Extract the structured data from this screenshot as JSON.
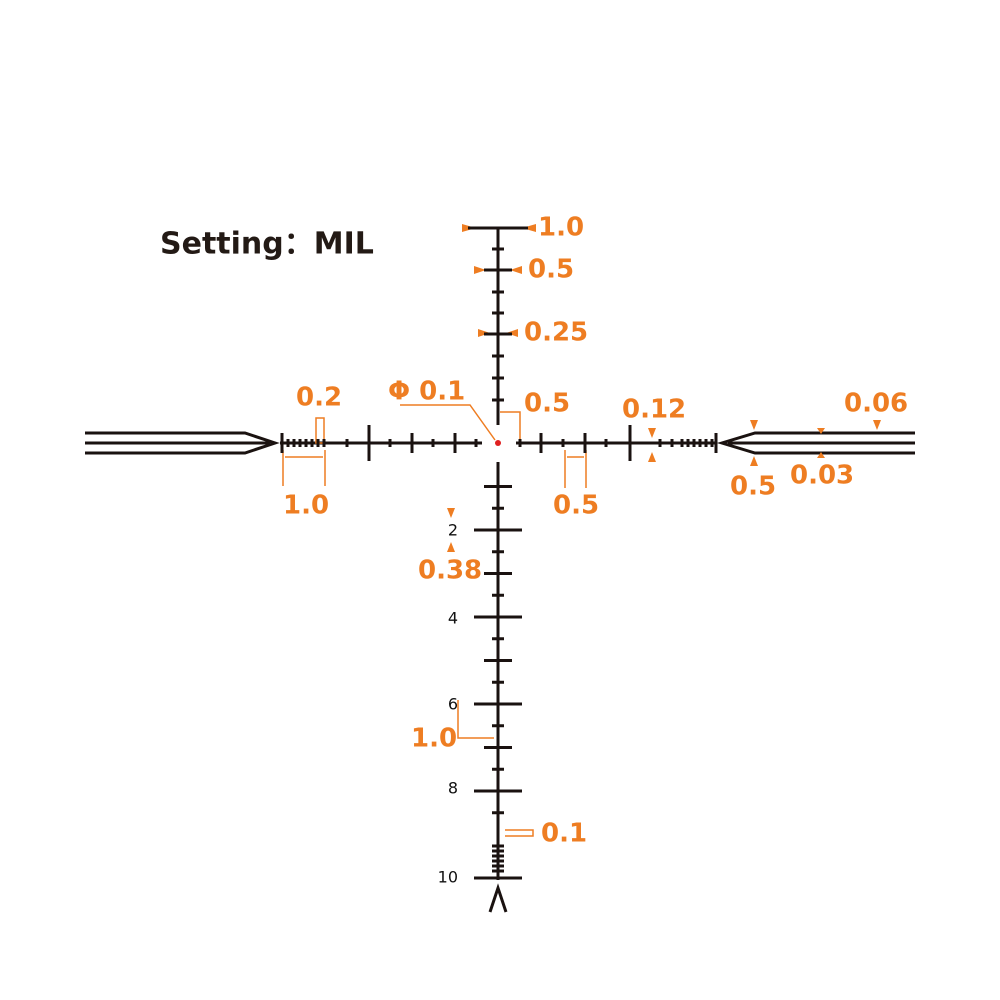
{
  "title": "Setting：MIL",
  "annotations": [
    "1.0",
    "0.5",
    "0.25",
    "0.2",
    "Φ 0.1",
    "0.5",
    "0.12",
    "0.06",
    "1.0",
    "0.5",
    "0.5",
    "0.03",
    "0.38",
    "1.0",
    "0.1"
  ],
  "range_numbers": [
    "2",
    "4",
    "6",
    "8",
    "10"
  ]
}
